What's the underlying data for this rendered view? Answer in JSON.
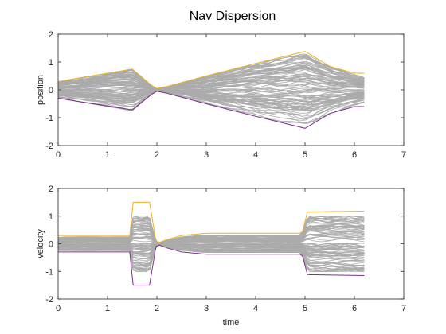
{
  "chart_data": [
    {
      "type": "line",
      "title": "Nav Dispersion",
      "xlabel": "",
      "ylabel": "position",
      "xlim": [
        0,
        7
      ],
      "ylim": [
        -2,
        2
      ],
      "xticks": [
        0,
        1,
        2,
        3,
        4,
        5,
        6,
        7
      ],
      "yticks": [
        -2,
        -1,
        0,
        1,
        2
      ],
      "grid": false,
      "legend": "none",
      "colors": {
        "upper": "#EDB120",
        "lower": "#7E2F8E",
        "samples": "#ABABAB"
      },
      "upper_bound": {
        "x": [
          0,
          1.5,
          1.9,
          2.0,
          2.2,
          3,
          4,
          5,
          5.5,
          6.0,
          6.2
        ],
        "y": [
          0.3,
          0.75,
          0.15,
          0.05,
          0.12,
          0.5,
          0.95,
          1.38,
          0.85,
          0.6,
          0.6
        ]
      },
      "lower_bound": {
        "x": [
          0,
          1.5,
          1.9,
          2.0,
          2.2,
          3,
          4,
          5,
          5.5,
          6.0,
          6.2
        ],
        "y": [
          -0.3,
          -0.72,
          -0.15,
          -0.05,
          -0.12,
          -0.5,
          -0.95,
          -1.38,
          -0.85,
          -0.6,
          -0.6
        ]
      },
      "samples": {
        "count": 100,
        "x": [
          0,
          1.5,
          1.9,
          2.0,
          2.2,
          3,
          4,
          5,
          5.5,
          6.0,
          6.2
        ],
        "envelope": [
          0.3,
          0.75,
          0.15,
          0.05,
          0.12,
          0.5,
          0.95,
          1.3,
          0.85,
          0.55,
          0.45
        ]
      }
    },
    {
      "type": "line",
      "title": "",
      "xlabel": "time",
      "ylabel": "velocity",
      "xlim": [
        0,
        7
      ],
      "ylim": [
        -2,
        2
      ],
      "xticks": [
        0,
        1,
        2,
        3,
        4,
        5,
        6,
        7
      ],
      "yticks": [
        -2,
        -1,
        0,
        1,
        2
      ],
      "grid": false,
      "legend": "none",
      "colors": {
        "upper": "#EDB120",
        "lower": "#7E2F8E",
        "samples": "#ABABAB"
      },
      "upper_bound": {
        "x": [
          0,
          1.45,
          1.52,
          1.85,
          1.98,
          2.05,
          2.2,
          2.5,
          3.0,
          4.9,
          4.95,
          5.05,
          6.2
        ],
        "y": [
          0.3,
          0.3,
          1.5,
          1.5,
          0.1,
          0.05,
          0.15,
          0.3,
          0.38,
          0.38,
          0.45,
          1.15,
          1.18
        ]
      },
      "lower_bound": {
        "x": [
          0,
          1.45,
          1.52,
          1.85,
          1.98,
          2.05,
          2.2,
          2.5,
          3.0,
          4.9,
          4.95,
          5.05,
          6.2
        ],
        "y": [
          -0.3,
          -0.3,
          -1.5,
          -1.5,
          -0.1,
          -0.05,
          -0.15,
          -0.3,
          -0.38,
          -0.38,
          -0.45,
          -1.12,
          -1.15
        ]
      },
      "samples": {
        "count": 100,
        "x": [
          0,
          1.45,
          1.52,
          1.85,
          1.98,
          2.05,
          2.2,
          2.5,
          3.0,
          4.9,
          4.95,
          5.05,
          6.2
        ],
        "envelope": [
          0.25,
          0.25,
          1.0,
          1.0,
          0.08,
          0.05,
          0.12,
          0.25,
          0.32,
          0.32,
          0.38,
          1.0,
          1.0
        ]
      }
    }
  ]
}
